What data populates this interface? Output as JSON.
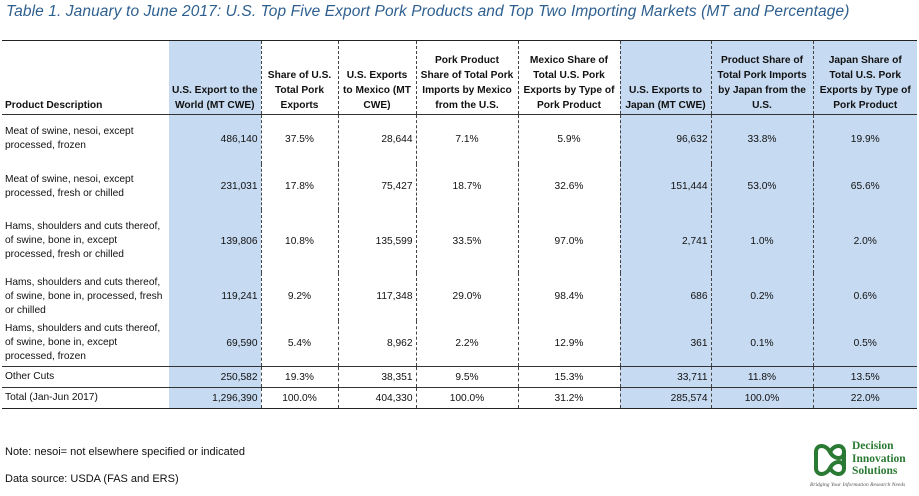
{
  "title": "Table 1.  January to June 2017: U.S. Top Five Export Pork Products and Top Two Importing Markets (MT and Percentage)",
  "headers": {
    "desc": "Product Description",
    "world": "U.S. Export to the World (MT CWE)",
    "share_us": "Share of U.S. Total Pork Exports",
    "mexico": "U.S. Exports to Mexico (MT CWE)",
    "mx_product_share": "Pork Product Share of Total Pork Imports by Mexico from the U.S.",
    "mx_share": "Mexico Share of Total U.S. Pork Exports by Type of Pork Product",
    "japan": "U.S. Exports to Japan (MT CWE)",
    "jp_product_share": "Product Share of Total Pork Imports by Japan from the U.S.",
    "jp_share": "Japan Share of Total U.S. Pork Exports by Type of Pork Product"
  },
  "rows": [
    [
      "Meat of swine, nesoi, except processed, frozen",
      "486,140",
      "37.5%",
      "28,644",
      "7.1%",
      "5.9%",
      "96,632",
      "33.8%",
      "19.9%"
    ],
    [
      "Meat of swine, nesoi, except processed, fresh or chilled",
      "231,031",
      "17.8%",
      "75,427",
      "18.7%",
      "32.6%",
      "151,444",
      "53.0%",
      "65.6%"
    ],
    [
      "Hams, shoulders and cuts thereof, of swine, bone in, except processed, fresh or chilled",
      "139,806",
      "10.8%",
      "135,599",
      "33.5%",
      "97.0%",
      "2,741",
      "1.0%",
      "2.0%"
    ],
    [
      "Hams, shoulders and cuts thereof, of swine, bone in, processed, fresh or chilled",
      "119,241",
      "9.2%",
      "117,348",
      "29.0%",
      "98.4%",
      "686",
      "0.2%",
      "0.6%"
    ],
    [
      "Hams, shoulders and cuts thereof, of swine, bone in, except processed, frozen",
      "69,590",
      "5.4%",
      "8,962",
      "2.2%",
      "12.9%",
      "361",
      "0.1%",
      "0.5%"
    ],
    [
      "Other Cuts",
      "250,582",
      "19.3%",
      "38,351",
      "9.5%",
      "15.3%",
      "33,711",
      "11.8%",
      "13.5%"
    ],
    [
      "Total (Jan-Jun 2017)",
      "1,296,390",
      "100.0%",
      "404,330",
      "100.0%",
      "31.2%",
      "285,574",
      "100.0%",
      "22.0%"
    ]
  ],
  "note": "Note:  nesoi= not elsewhere specified or indicated",
  "source": "Data source: USDA (FAS and ERS)",
  "logo": {
    "line1": "Decision",
    "line2": "Innovation",
    "line3": "Solutions",
    "tagline": "Bridging Your Information Research Needs",
    "color": "#2a7a33"
  }
}
